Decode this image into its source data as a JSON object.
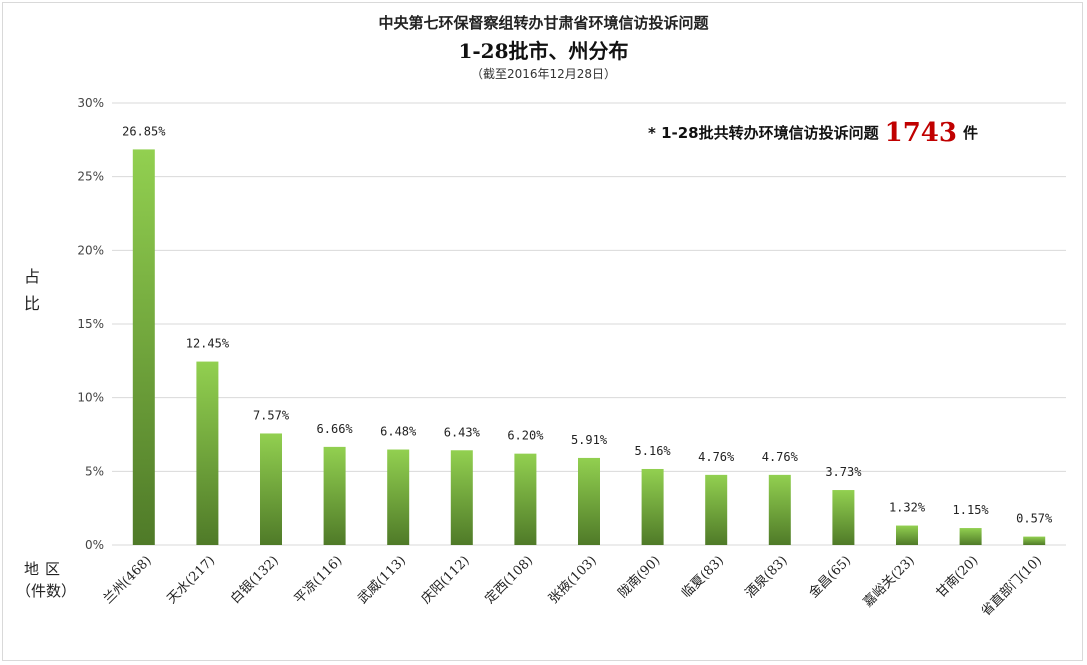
{
  "header": {
    "title": "中央第七环保督察组转办甘肃省环境信访投诉问题",
    "subtitle": "1-28批市、州分布",
    "date_note": "（截至2016年12月28日）"
  },
  "note": {
    "prefix": "* 1-28批共转办环境信访投诉问题",
    "number": "1743",
    "suffix": "件"
  },
  "axis": {
    "ylabel_line1": "占",
    "ylabel_line2": "比",
    "xlabel_line1": "地区",
    "xlabel_line2": "（件数）"
  },
  "colors": {
    "bar_top": "#92d050",
    "bar_bottom": "#4f7a28",
    "note_number": "#c00000",
    "grid": "#d9d9d9"
  },
  "chart_data": {
    "type": "bar",
    "title": "1-28批市、州分布",
    "xlabel": "地区（件数）",
    "ylabel": "占比",
    "ylim": [
      0,
      30
    ],
    "yticks": [
      "0%",
      "5%",
      "10%",
      "15%",
      "20%",
      "25%",
      "30%"
    ],
    "grid": true,
    "categories": [
      "兰州(468)",
      "天水(217)",
      "白银(132)",
      "平凉(116)",
      "武威(113)",
      "庆阳(112)",
      "定西(108)",
      "张掖(103)",
      "陇南(90)",
      "临夏(83)",
      "酒泉(83)",
      "金昌(65)",
      "嘉峪关(23)",
      "甘南(20)",
      "省直部门(10)"
    ],
    "values": [
      26.85,
      12.45,
      7.57,
      6.66,
      6.48,
      6.43,
      6.2,
      5.91,
      5.16,
      4.76,
      4.76,
      3.73,
      1.32,
      1.15,
      0.57
    ],
    "data_labels": [
      "26.85%",
      "12.45%",
      "7.57%",
      "6.66%",
      "6.48%",
      "6.43%",
      "6.20%",
      "5.91%",
      "5.16%",
      "4.76%",
      "4.76%",
      "3.73%",
      "1.32%",
      "1.15%",
      "0.57%"
    ]
  }
}
